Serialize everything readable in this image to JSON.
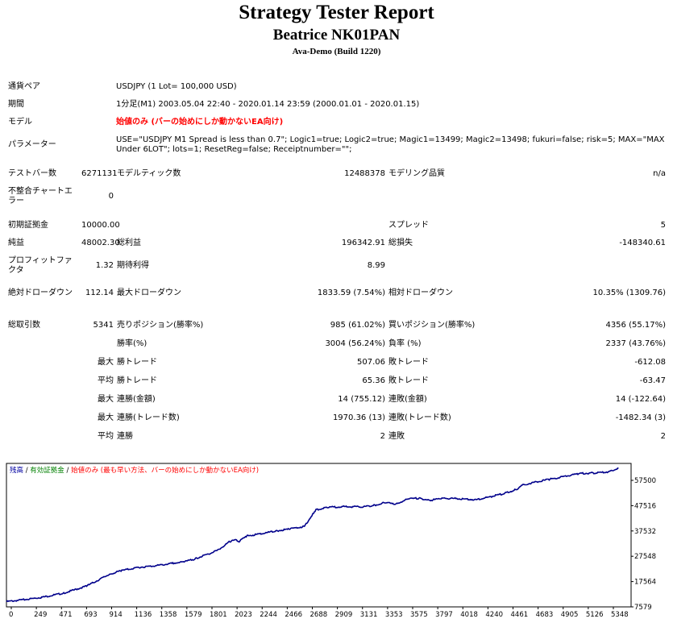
{
  "header": {
    "title": "Strategy Tester Report",
    "subtitle": "Beatrice NK01PAN",
    "build": "Ava-Demo (Build 1220)"
  },
  "settings": {
    "symbol_label": "通貨ペア",
    "symbol_value": "USDJPY (1 Lot= 100,000 USD)",
    "period_label": "期間",
    "period_value": "1分足(M1) 2003.05.04 22:40 - 2020.01.14 23:59 (2000.01.01 - 2020.01.15)",
    "model_label": "モデル",
    "model_value": "始値のみ (バーの始めにしか動かないEA向け)",
    "params_label": "パラメーター",
    "params_value": "USE=\"USDJPY M1 Spread is less than 0.7\"; Logic1=true; Logic2=true; Magic1=13499; Magic2=13498; fukuri=false; risk=5; MAX=\"MAX Under 6LOT\"; lots=1; ResetReg=false; Receiptnumber=\"\";"
  },
  "stats": {
    "bars_label": "テストバー数",
    "bars_value": "6271131",
    "ticks_label": "モデルティック数",
    "ticks_value": "12488378",
    "quality_label": "モデリング品質",
    "quality_value": "n/a",
    "mismatch_label": "不整合チャートエラー",
    "mismatch_value": "0",
    "deposit_label": "初期証拠金",
    "deposit_value": "10000.00",
    "spread_label": "スプレッド",
    "spread_value": "5",
    "net_label": "純益",
    "net_value": "48002.30",
    "gross_profit_label": "総利益",
    "gross_profit_value": "196342.91",
    "gross_loss_label": "総損失",
    "gross_loss_value": "-148340.61",
    "pf_label": "プロフィットファクタ",
    "pf_value": "1.32",
    "expected_label": "期待利得",
    "expected_value": "8.99",
    "abs_dd_label": "絶対ドローダウン",
    "abs_dd_value": "112.14",
    "max_dd_label": "最大ドローダウン",
    "max_dd_value": "1833.59 (7.54%)",
    "rel_dd_label": "相対ドローダウン",
    "rel_dd_value": "10.35% (1309.76)",
    "trades_label": "総取引数",
    "trades_value": "5341",
    "short_label": "売りポジション(勝率%)",
    "short_value": "985 (61.02%)",
    "long_label": "買いポジション(勝率%)",
    "long_value": "4356 (55.17%)",
    "win_pct_label": "勝率(%)",
    "win_pct_value": "3004 (56.24%)",
    "loss_pct_label": "負率 (%)",
    "loss_pct_value": "2337 (43.76%)",
    "max_label": "最大",
    "avg_label": "平均",
    "win_trade_label": "勝トレード",
    "loss_trade_label": "敗トレード",
    "max_win": "507.06",
    "max_loss": "-612.08",
    "avg_win": "65.36",
    "avg_loss": "-63.47",
    "cons_win_money_label": "連勝(金額)",
    "cons_win_money_value": "14 (755.12)",
    "cons_loss_money_label": "連敗(金額)",
    "cons_loss_money_value": "14 (-122.64)",
    "cons_profit_label": "連勝(トレード数)",
    "cons_profit_value": "1970.36 (13)",
    "cons_lossamt_label": "連敗(トレード数)",
    "cons_lossamt_value": "-1482.34 (3)",
    "avg_cons_win_label": "連勝",
    "avg_cons_win_value": "2",
    "avg_cons_loss_label": "連敗",
    "avg_cons_loss_value": "2"
  },
  "chart_data": {
    "type": "line",
    "legend": [
      {
        "text": "残高",
        "color": "#0000a0"
      },
      {
        "text": " / ",
        "color": "#000000"
      },
      {
        "text": "有効証拠金",
        "color": "#008000"
      },
      {
        "text": " / ",
        "color": "#000000"
      },
      {
        "text": "始値のみ (最も早い方法、バーの始めにしか動かないEA向け)",
        "color": "#ff0000"
      }
    ],
    "legend_position": "top-left",
    "line_color": "#00008b",
    "grid": false,
    "xlim": [
      0,
      5450
    ],
    "ylim": [
      7579,
      60000
    ],
    "x_ticks": [
      "0",
      "249",
      "471",
      "693",
      "914",
      "1136",
      "1358",
      "1579",
      "1801",
      "2023",
      "2244",
      "2466",
      "2688",
      "2909",
      "3131",
      "3353",
      "3575",
      "3797",
      "4018",
      "4240",
      "4461",
      "4683",
      "4905",
      "5126",
      "5348"
    ],
    "y_ticks": [
      "57500",
      "47516",
      "37532",
      "27548",
      "17564",
      "7579"
    ],
    "series": [
      {
        "x": [
          0,
          150,
          300,
          500,
          700,
          900,
          1000,
          1150,
          1300,
          1450,
          1550,
          1650,
          1800,
          1850,
          1950,
          2000,
          2030,
          2100,
          2250,
          2350,
          2466,
          2600,
          2680,
          2700,
          2800,
          2950,
          3100,
          3200,
          3300,
          3400,
          3500,
          3600,
          3700,
          3800,
          3950,
          4100,
          4240,
          4350,
          4450,
          4500,
          4650,
          4750,
          4900,
          5000,
          5126,
          5250,
          5340
        ],
        "y": [
          9500,
          10200,
          11000,
          12600,
          15200,
          19500,
          20800,
          22000,
          22600,
          23500,
          24000,
          25200,
          27500,
          28400,
          31500,
          32000,
          31500,
          33500,
          34500,
          35300,
          36000,
          37000,
          42000,
          43000,
          44000,
          44200,
          44100,
          44600,
          45700,
          45100,
          47000,
          47300,
          46500,
          47300,
          47100,
          46700,
          48000,
          49100,
          50500,
          52000,
          53500,
          54300,
          55500,
          56300,
          56500,
          56900,
          58200
        ]
      }
    ]
  }
}
